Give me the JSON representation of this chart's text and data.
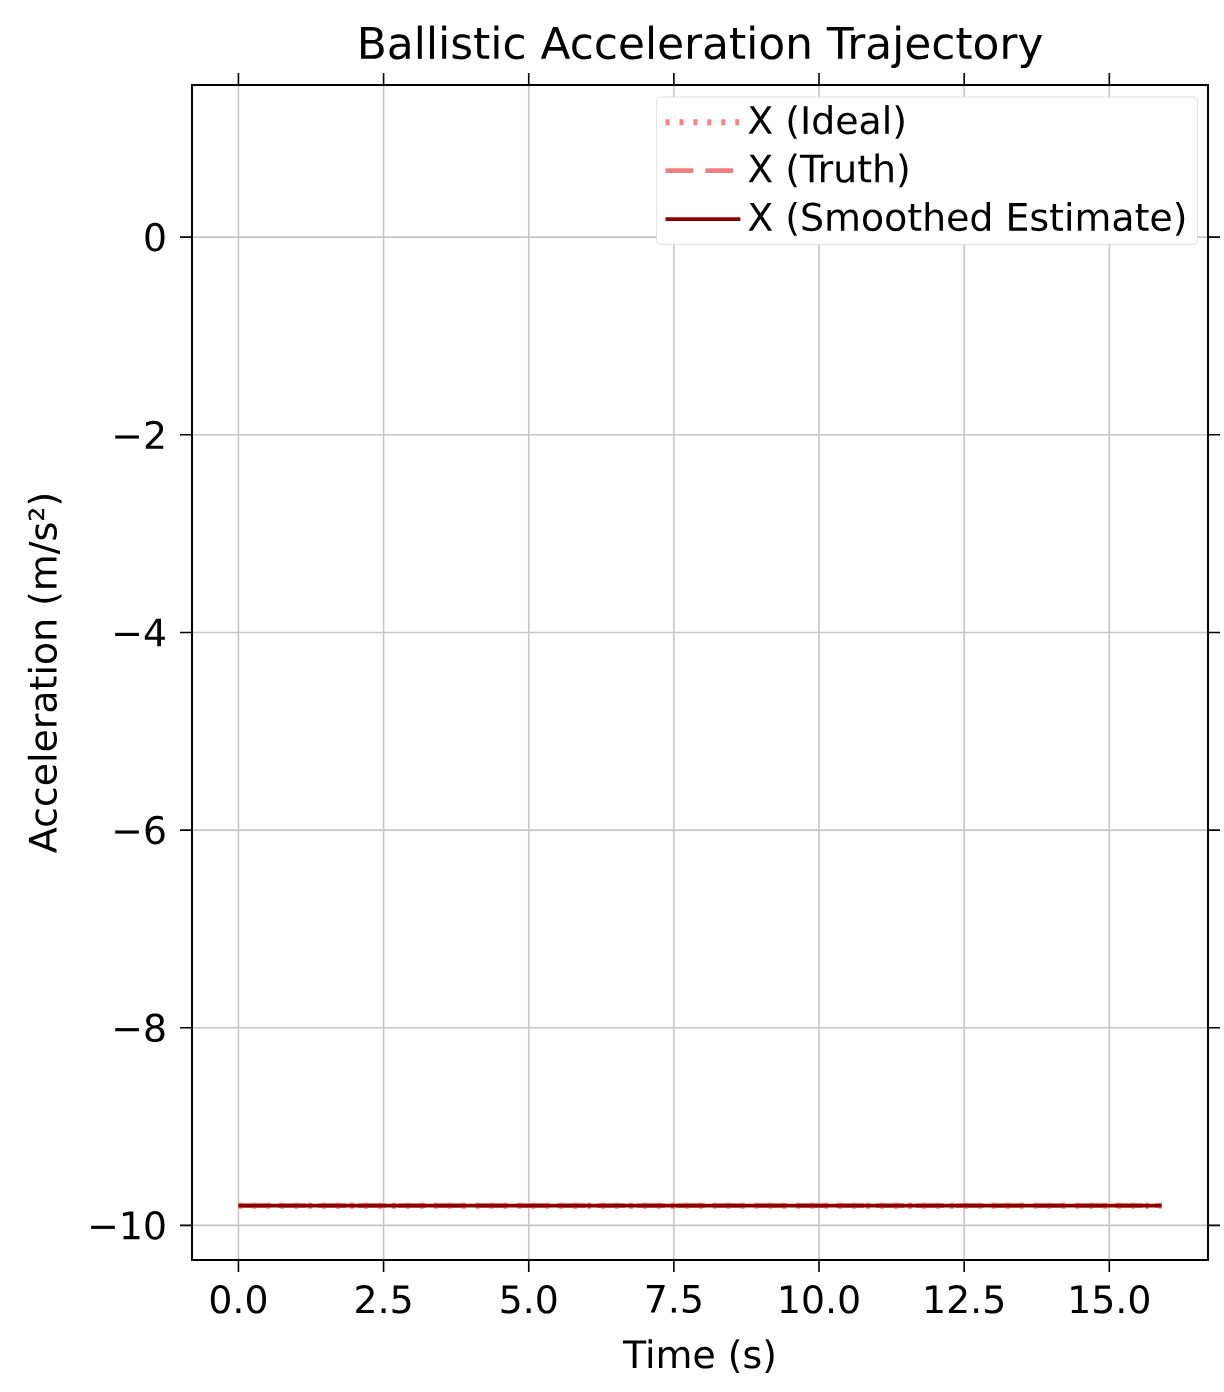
{
  "chart_data": {
    "type": "line",
    "title": "Ballistic Acceleration Trajectory",
    "xlabel": "Time (s)",
    "ylabel": "Acceleration (m/s²)",
    "xlim": [
      -0.8,
      16.7
    ],
    "ylim": [
      -10.35,
      1.54
    ],
    "xticks": [
      {
        "value": 0,
        "label": "0.0"
      },
      {
        "value": 2.5,
        "label": "2.5"
      },
      {
        "value": 5,
        "label": "5.0"
      },
      {
        "value": 7.5,
        "label": "7.5"
      },
      {
        "value": 10,
        "label": "10.0"
      },
      {
        "value": 12.5,
        "label": "12.5"
      },
      {
        "value": 15,
        "label": "15.0"
      }
    ],
    "yticks": [
      {
        "value": -10,
        "label": "−10"
      },
      {
        "value": -8,
        "label": "−8"
      },
      {
        "value": -6,
        "label": "−6"
      },
      {
        "value": -4,
        "label": "−4"
      },
      {
        "value": -2,
        "label": "−2"
      },
      0
    ],
    "grid": true,
    "legend": "top right",
    "x": [
      0,
      15.9
    ],
    "series": [
      {
        "name": "X (Ideal)",
        "color": "#ff7f7f",
        "line_style": "dotted",
        "values": [
          -9.8,
          -9.8
        ]
      },
      {
        "name": "X (Truth)",
        "color": "#f08080",
        "line_style": "dashed",
        "values": [
          -9.8,
          -9.8
        ]
      },
      {
        "name": "X (Smoothed Estimate)",
        "color": "#8b0000",
        "line_style": "solid",
        "values": [
          -9.8,
          -9.8
        ]
      }
    ]
  }
}
